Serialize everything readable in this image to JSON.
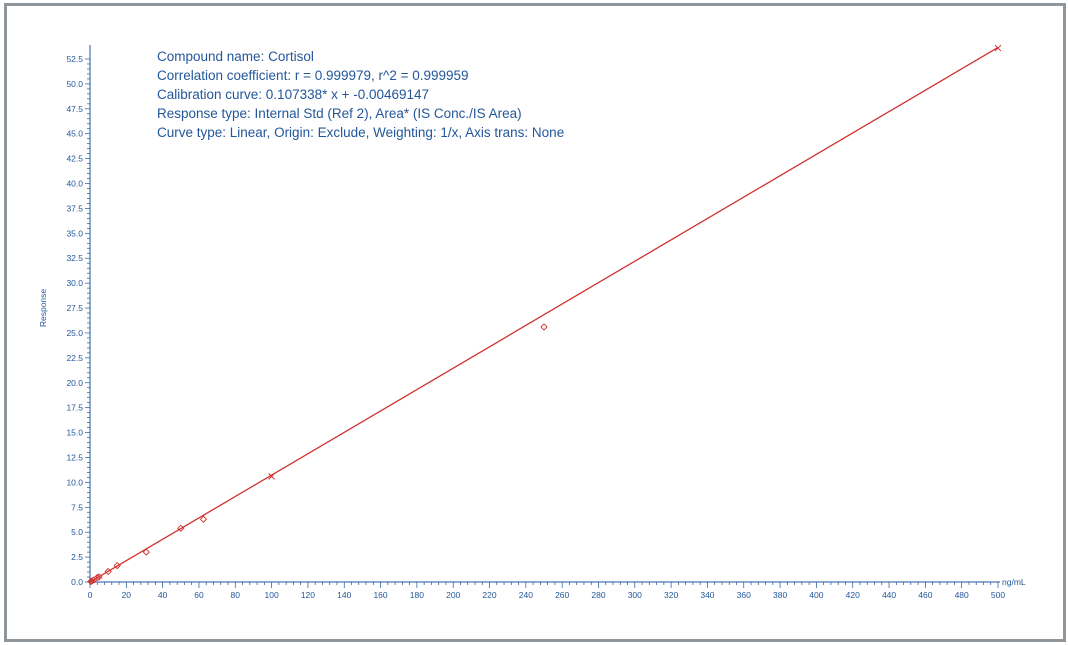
{
  "chart_data": {
    "type": "scatter",
    "info_lines": [
      "Compound name: Cortisol",
      "Correlation coefficient: r = 0.999979, r^2 = 0.999959",
      "Calibration curve: 0.107338* x + -0.00469147",
      "Response type: Internal Std (Ref 2), Area* (IS Conc./IS Area)",
      "Curve type: Linear, Origin: Exclude, Weighting: 1/x, Axis trans: None"
    ],
    "xlabel": "ng/mL",
    "ylabel": "Response",
    "xlim": [
      0,
      500
    ],
    "ylim": [
      0,
      52.5
    ],
    "x_ticks": [
      0,
      20,
      40,
      60,
      80,
      100,
      120,
      140,
      160,
      180,
      200,
      220,
      240,
      260,
      280,
      300,
      320,
      340,
      360,
      380,
      400,
      420,
      440,
      460,
      480,
      500
    ],
    "y_ticks": [
      "0.0",
      "2.5",
      "5.0",
      "7.5",
      "10.0",
      "12.5",
      "15.0",
      "17.5",
      "20.0",
      "22.5",
      "25.0",
      "27.5",
      "30.0",
      "32.5",
      "35.0",
      "37.5",
      "40.0",
      "42.5",
      "45.0",
      "47.5",
      "50.0",
      "52.5"
    ],
    "fit": {
      "slope": 0.107338,
      "intercept": -0.00469147,
      "x_range": [
        0,
        500
      ]
    },
    "points": [
      {
        "x": 0.5,
        "y": 0.05,
        "marker": "diamond"
      },
      {
        "x": 1,
        "y": 0.1,
        "marker": "diamond"
      },
      {
        "x": 2,
        "y": 0.2,
        "marker": "diamond"
      },
      {
        "x": 4,
        "y": 0.45,
        "marker": "diamond"
      },
      {
        "x": 5,
        "y": 0.5,
        "marker": "diamond"
      },
      {
        "x": 10,
        "y": 1.05,
        "marker": "diamond"
      },
      {
        "x": 15,
        "y": 1.65,
        "marker": "diamond"
      },
      {
        "x": 31,
        "y": 3.0,
        "marker": "diamond"
      },
      {
        "x": 50,
        "y": 5.4,
        "marker": "diamond"
      },
      {
        "x": 62.5,
        "y": 6.3,
        "marker": "diamond"
      },
      {
        "x": 100,
        "y": 10.6,
        "marker": "cross"
      },
      {
        "x": 250,
        "y": 25.6,
        "marker": "diamond"
      },
      {
        "x": 500,
        "y": 53.6,
        "marker": "cross"
      }
    ],
    "colors": {
      "text": "#23579a",
      "axis": "#23579a",
      "series": "#d0312d"
    },
    "grid": false
  }
}
